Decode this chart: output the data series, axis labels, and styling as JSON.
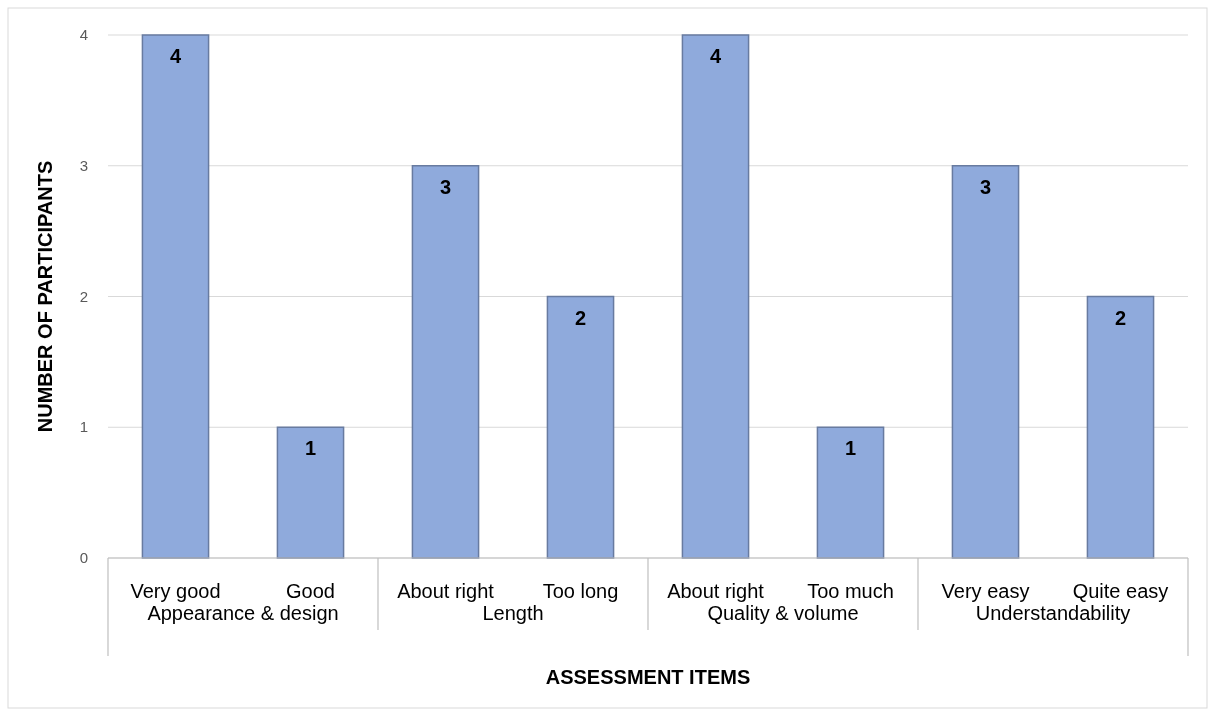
{
  "chart_data": {
    "type": "bar",
    "xlabel": "ASSESSMENT ITEMS",
    "ylabel": "NUMBER OF PARTICIPANTS",
    "categories": [
      "Very good",
      "Good",
      "About right",
      "Too long",
      "About right",
      "Too much",
      "Very easy",
      "Quite easy"
    ],
    "values": [
      4,
      1,
      3,
      2,
      4,
      1,
      3,
      2
    ],
    "color": "#8faadc",
    "ylim": [
      0,
      4
    ],
    "yticks": [
      0,
      1,
      2,
      3,
      4
    ],
    "grid": "y",
    "data_labels": true,
    "annotations": [
      "Appearance & design",
      "Length",
      "Quality & volume",
      "Understandability"
    ]
  }
}
